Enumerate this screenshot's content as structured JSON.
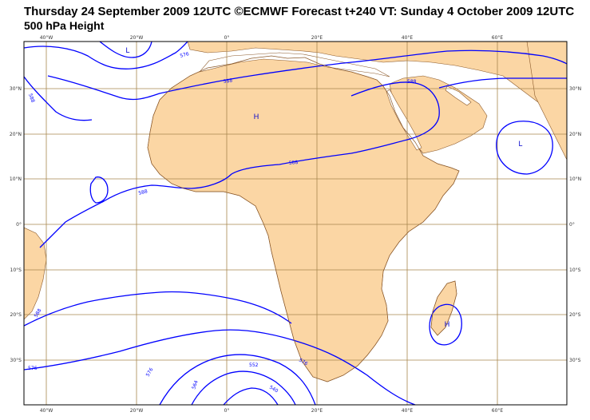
{
  "header": {
    "title": "Thursday 24 September 2009 12UTC ©ECMWF Forecast t+240 VT: Sunday 4 October 2009 12UTC",
    "subtitle": "500 hPa Height"
  },
  "map": {
    "colors": {
      "land": "#fbd6a4",
      "coast": "#8c5a2b",
      "grid": "#a9874f",
      "contour": "#0000ff",
      "frame": "#000000"
    },
    "lon_ticks": [
      "40°W",
      "20°W",
      "0°",
      "20°E",
      "40°E",
      "60°E"
    ],
    "lat_ticks_left": [
      "30°N",
      "20°N",
      "10°N",
      "0°",
      "10°S",
      "20°S",
      "30°S"
    ],
    "lat_ticks_right": [
      "30°N",
      "20°N",
      "10°N",
      "0°",
      "10°S",
      "20°S",
      "30°S"
    ],
    "contour_labels": [
      "576",
      "588",
      "588",
      "588",
      "588",
      "588",
      "588",
      "576",
      "576",
      "576",
      "564",
      "552",
      "540"
    ],
    "centers": [
      "L",
      "H",
      "L",
      "H"
    ]
  }
}
